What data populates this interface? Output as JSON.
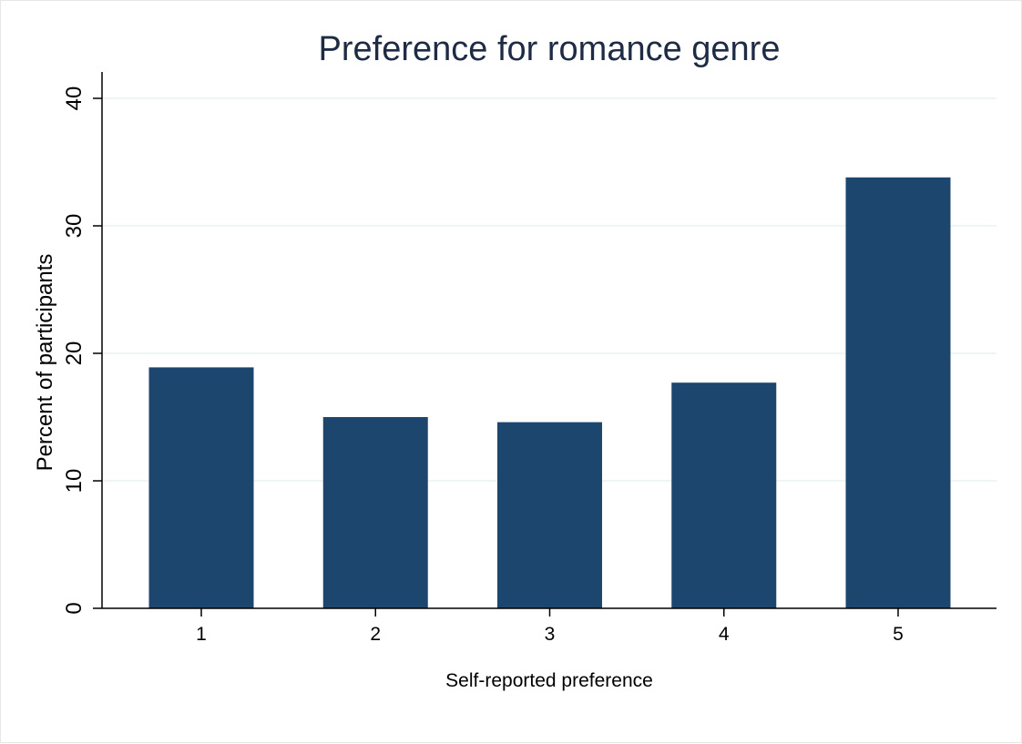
{
  "chart_data": {
    "type": "bar",
    "title": "Preference for romance genre",
    "xlabel": "Self-reported preference",
    "ylabel": "Percent of participants",
    "categories": [
      "1",
      "2",
      "3",
      "4",
      "5"
    ],
    "values": [
      18.9,
      15.0,
      14.6,
      17.7,
      33.8
    ],
    "ylim": [
      0,
      40
    ],
    "yticks": [
      "0",
      "10",
      "20",
      "30",
      "40"
    ],
    "grid": true,
    "legend": "none",
    "colors": {
      "bar": "#1c466d",
      "gridline": "#eaf0f2",
      "title": "#1e2b45",
      "axis": "#000000"
    }
  }
}
